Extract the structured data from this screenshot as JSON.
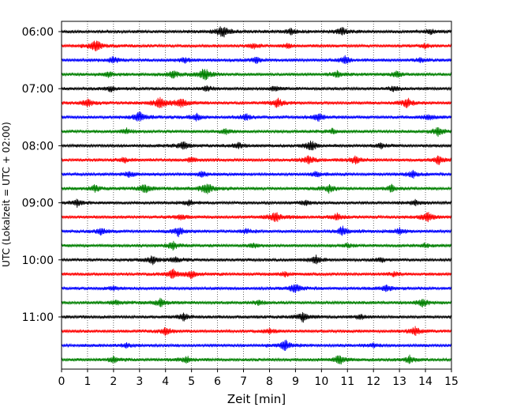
{
  "chart_data": {
    "type": "line",
    "title": "",
    "xlabel": "Zeit  [min]",
    "ylabel": "UTC (Lokalzeit = UTC + 02:00)",
    "xlim": [
      0,
      15
    ],
    "x_ticks": [
      "0",
      "1",
      "2",
      "3",
      "4",
      "5",
      "6",
      "7",
      "8",
      "9",
      "10",
      "11",
      "12",
      "13",
      "14",
      "15"
    ],
    "y_ticks": [
      "06:00",
      "07:00",
      "08:00",
      "09:00",
      "10:00",
      "11:00"
    ],
    "grid": "vertical dotted lines at every minute",
    "trace_interval_minutes": 15,
    "trace_colors": [
      "#000000",
      "#ff0000",
      "#0000ff",
      "#008000"
    ],
    "traces": [
      {
        "start": "06:00",
        "color": "#000000",
        "events": [
          {
            "t": 6.2,
            "amp": 0.95
          },
          {
            "t": 8.8,
            "amp": 0.45
          },
          {
            "t": 10.8,
            "amp": 0.55
          },
          {
            "t": 14.2,
            "amp": 0.35
          }
        ]
      },
      {
        "start": "06:15",
        "color": "#ff0000",
        "events": [
          {
            "t": 1.3,
            "amp": 0.95
          },
          {
            "t": 7.4,
            "amp": 0.3
          },
          {
            "t": 8.7,
            "amp": 0.3
          },
          {
            "t": 14.0,
            "amp": 0.3
          }
        ]
      },
      {
        "start": "06:30",
        "color": "#0000ff",
        "events": [
          {
            "t": 2.0,
            "amp": 0.45
          },
          {
            "t": 4.7,
            "amp": 0.4
          },
          {
            "t": 7.5,
            "amp": 0.4
          },
          {
            "t": 10.9,
            "amp": 0.55
          },
          {
            "t": 13.8,
            "amp": 0.35
          }
        ]
      },
      {
        "start": "06:45",
        "color": "#008000",
        "events": [
          {
            "t": 1.8,
            "amp": 0.35
          },
          {
            "t": 4.3,
            "amp": 0.5
          },
          {
            "t": 5.5,
            "amp": 0.95
          },
          {
            "t": 10.6,
            "amp": 0.4
          },
          {
            "t": 12.9,
            "amp": 0.4
          }
        ]
      },
      {
        "start": "07:00",
        "color": "#000000",
        "events": [
          {
            "t": 1.9,
            "amp": 0.35
          },
          {
            "t": 5.6,
            "amp": 0.35
          },
          {
            "t": 8.2,
            "amp": 0.35
          },
          {
            "t": 12.8,
            "amp": 0.35
          }
        ]
      },
      {
        "start": "07:15",
        "color": "#ff0000",
        "events": [
          {
            "t": 1.0,
            "amp": 0.6
          },
          {
            "t": 3.8,
            "amp": 0.95
          },
          {
            "t": 4.6,
            "amp": 0.6
          },
          {
            "t": 8.3,
            "amp": 0.65
          },
          {
            "t": 13.3,
            "amp": 0.75
          }
        ]
      },
      {
        "start": "07:30",
        "color": "#0000ff",
        "events": [
          {
            "t": 3.0,
            "amp": 0.75
          },
          {
            "t": 5.2,
            "amp": 0.45
          },
          {
            "t": 7.1,
            "amp": 0.4
          },
          {
            "t": 9.9,
            "amp": 0.55
          },
          {
            "t": 14.1,
            "amp": 0.4
          }
        ]
      },
      {
        "start": "07:45",
        "color": "#008000",
        "events": [
          {
            "t": 2.5,
            "amp": 0.35
          },
          {
            "t": 6.3,
            "amp": 0.35
          },
          {
            "t": 10.4,
            "amp": 0.35
          },
          {
            "t": 14.5,
            "amp": 0.65
          }
        ]
      },
      {
        "start": "08:00",
        "color": "#000000",
        "events": [
          {
            "t": 4.7,
            "amp": 0.6
          },
          {
            "t": 6.8,
            "amp": 0.4
          },
          {
            "t": 9.6,
            "amp": 0.75
          },
          {
            "t": 12.3,
            "amp": 0.35
          }
        ]
      },
      {
        "start": "08:15",
        "color": "#ff0000",
        "events": [
          {
            "t": 2.4,
            "amp": 0.35
          },
          {
            "t": 5.0,
            "amp": 0.35
          },
          {
            "t": 9.5,
            "amp": 0.6
          },
          {
            "t": 11.3,
            "amp": 0.55
          },
          {
            "t": 14.5,
            "amp": 0.6
          }
        ]
      },
      {
        "start": "08:30",
        "color": "#0000ff",
        "events": [
          {
            "t": 2.6,
            "amp": 0.35
          },
          {
            "t": 5.4,
            "amp": 0.35
          },
          {
            "t": 9.8,
            "amp": 0.35
          },
          {
            "t": 13.5,
            "amp": 0.5
          }
        ]
      },
      {
        "start": "08:45",
        "color": "#008000",
        "events": [
          {
            "t": 1.3,
            "amp": 0.45
          },
          {
            "t": 3.2,
            "amp": 0.7
          },
          {
            "t": 5.6,
            "amp": 0.95
          },
          {
            "t": 10.3,
            "amp": 0.55
          },
          {
            "t": 12.7,
            "amp": 0.5
          }
        ]
      },
      {
        "start": "09:00",
        "color": "#000000",
        "events": [
          {
            "t": 0.6,
            "amp": 0.45
          },
          {
            "t": 4.9,
            "amp": 0.35
          },
          {
            "t": 9.4,
            "amp": 0.35
          },
          {
            "t": 13.6,
            "amp": 0.35
          }
        ]
      },
      {
        "start": "09:15",
        "color": "#ff0000",
        "events": [
          {
            "t": 4.6,
            "amp": 0.35
          },
          {
            "t": 8.2,
            "amp": 0.9
          },
          {
            "t": 10.6,
            "amp": 0.5
          },
          {
            "t": 14.1,
            "amp": 0.75
          }
        ]
      },
      {
        "start": "09:30",
        "color": "#0000ff",
        "events": [
          {
            "t": 1.5,
            "amp": 0.45
          },
          {
            "t": 4.5,
            "amp": 0.7
          },
          {
            "t": 7.1,
            "amp": 0.35
          },
          {
            "t": 10.8,
            "amp": 0.65
          },
          {
            "t": 13.0,
            "amp": 0.45
          }
        ]
      },
      {
        "start": "09:45",
        "color": "#008000",
        "events": [
          {
            "t": 4.3,
            "amp": 0.55
          },
          {
            "t": 7.4,
            "amp": 0.3
          },
          {
            "t": 11.0,
            "amp": 0.3
          },
          {
            "t": 14.0,
            "amp": 0.3
          }
        ]
      },
      {
        "start": "10:00",
        "color": "#000000",
        "events": [
          {
            "t": 3.5,
            "amp": 0.6
          },
          {
            "t": 4.4,
            "amp": 0.35
          },
          {
            "t": 9.8,
            "amp": 0.55
          },
          {
            "t": 12.3,
            "amp": 0.3
          }
        ]
      },
      {
        "start": "10:15",
        "color": "#ff0000",
        "events": [
          {
            "t": 4.3,
            "amp": 0.65
          },
          {
            "t": 5.0,
            "amp": 0.5
          },
          {
            "t": 8.6,
            "amp": 0.3
          },
          {
            "t": 12.8,
            "amp": 0.3
          }
        ]
      },
      {
        "start": "10:30",
        "color": "#0000ff",
        "events": [
          {
            "t": 2.0,
            "amp": 0.3
          },
          {
            "t": 9.0,
            "amp": 0.7
          },
          {
            "t": 12.5,
            "amp": 0.5
          }
        ]
      },
      {
        "start": "10:45",
        "color": "#008000",
        "events": [
          {
            "t": 2.1,
            "amp": 0.35
          },
          {
            "t": 3.8,
            "amp": 0.55
          },
          {
            "t": 7.6,
            "amp": 0.3
          },
          {
            "t": 13.9,
            "amp": 0.55
          }
        ]
      },
      {
        "start": "11:00",
        "color": "#000000",
        "events": [
          {
            "t": 4.7,
            "amp": 0.5
          },
          {
            "t": 9.3,
            "amp": 0.7
          },
          {
            "t": 11.5,
            "amp": 0.3
          }
        ]
      },
      {
        "start": "11:15",
        "color": "#ff0000",
        "events": [
          {
            "t": 4.0,
            "amp": 0.55
          },
          {
            "t": 8.0,
            "amp": 0.3
          },
          {
            "t": 13.6,
            "amp": 0.6
          }
        ]
      },
      {
        "start": "11:30",
        "color": "#0000ff",
        "events": [
          {
            "t": 2.5,
            "amp": 0.3
          },
          {
            "t": 8.6,
            "amp": 0.7
          },
          {
            "t": 12.0,
            "amp": 0.3
          }
        ]
      },
      {
        "start": "11:45",
        "color": "#008000",
        "events": [
          {
            "t": 2.0,
            "amp": 0.4
          },
          {
            "t": 4.8,
            "amp": 0.45
          },
          {
            "t": 10.7,
            "amp": 0.7
          },
          {
            "t": 13.4,
            "amp": 0.5
          }
        ]
      }
    ]
  }
}
